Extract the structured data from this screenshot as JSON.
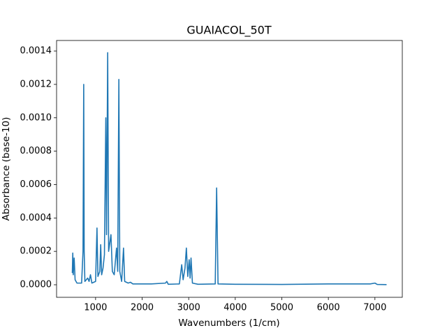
{
  "chart_data": {
    "type": "line",
    "title": "GUAIACOL_50T",
    "x_label": "Wavenumbers (1/cm)",
    "y_label": "Absorbance (base-10)",
    "x": [
      500,
      510,
      520,
      540,
      560,
      600,
      700,
      730,
      745,
      755,
      770,
      830,
      860,
      890,
      920,
      1000,
      1030,
      1050,
      1090,
      1110,
      1130,
      1160,
      1190,
      1220,
      1235,
      1260,
      1280,
      1330,
      1360,
      1400,
      1450,
      1475,
      1500,
      1520,
      1560,
      1600,
      1625,
      1700,
      1750,
      1800,
      2000,
      2200,
      2500,
      2530,
      2560,
      2800,
      2850,
      2880,
      2920,
      2950,
      2980,
      3010,
      3030,
      3050,
      3080,
      3200,
      3570,
      3600,
      3630,
      4000,
      5000,
      6000,
      6900,
      7000,
      7050,
      7250
    ],
    "values": [
      7e-05,
      0.00019,
      6e-05,
      0.00016,
      3e-05,
      1e-05,
      1e-05,
      0.0002,
      0.0012,
      0.0002,
      2e-05,
      4e-05,
      2e-05,
      6e-05,
      1e-05,
      2e-05,
      0.00034,
      5e-05,
      8e-05,
      0.00024,
      6e-05,
      0.0001,
      0.00018,
      0.001,
      0.0003,
      0.00139,
      0.0002,
      0.0003,
      8e-05,
      6e-05,
      0.00022,
      8e-05,
      0.00123,
      8e-05,
      2e-05,
      0.00022,
      2e-05,
      1e-05,
      1.5e-05,
      5e-06,
      5e-06,
      5e-06,
      1e-05,
      2e-05,
      3e-06,
      5e-06,
      0.00012,
      3e-05,
      0.0001,
      0.00022,
      5e-05,
      0.00015,
      4e-05,
      0.00016,
      1e-05,
      3e-06,
      5e-06,
      0.00058,
      5e-06,
      3e-06,
      2e-06,
      5e-06,
      5e-06,
      1e-05,
      2e-06,
      1e-06
    ],
    "color": "#1f77b4",
    "xlim": [
      162,
      7588
    ],
    "xticks": [
      1000,
      2000,
      3000,
      4000,
      5000,
      6000,
      7000
    ],
    "ylim": [
      -7.52e-05,
      0.001463
    ],
    "yticks": [
      {
        "value": 0,
        "label": "0.0000"
      },
      {
        "value": 0.0002,
        "label": "0.0002"
      },
      {
        "value": 0.0004,
        "label": "0.0004"
      },
      {
        "value": 0.0006,
        "label": "0.0006"
      },
      {
        "value": 0.0008,
        "label": "0.0008"
      },
      {
        "value": 0.001,
        "label": "0.0010"
      },
      {
        "value": 0.0012,
        "label": "0.0012"
      },
      {
        "value": 0.0014,
        "label": "0.0014"
      }
    ]
  }
}
